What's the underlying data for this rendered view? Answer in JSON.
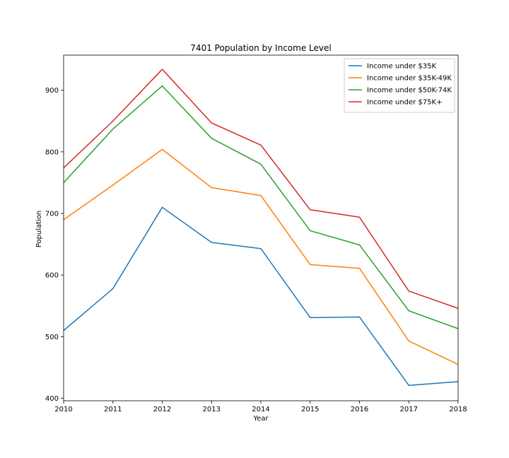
{
  "chart_data": {
    "type": "line",
    "title": "7401 Population by Income Level",
    "xlabel": "Year",
    "ylabel": "Population",
    "x": [
      2010,
      2011,
      2012,
      2013,
      2014,
      2015,
      2016,
      2017,
      2018
    ],
    "xlim": [
      2010,
      2018
    ],
    "ylim": [
      396,
      957
    ],
    "yticks": [
      400,
      500,
      600,
      700,
      800,
      900
    ],
    "grid": false,
    "legend_position": "top-right",
    "series": [
      {
        "name": "Income under $35K",
        "color": "#1f77b4",
        "values": [
          510,
          578,
          710,
          653,
          643,
          531,
          532,
          421,
          427
        ]
      },
      {
        "name": "Income under $35K-49K",
        "color": "#ff7f0e",
        "values": [
          690,
          746,
          804,
          742,
          729,
          617,
          611,
          493,
          455
        ]
      },
      {
        "name": "Income under $50K-74K",
        "color": "#2ca02c",
        "values": [
          750,
          837,
          907,
          822,
          780,
          672,
          649,
          542,
          513
        ]
      },
      {
        "name": "Income under $75K+",
        "color": "#d62728",
        "values": [
          774,
          850,
          934,
          847,
          811,
          706,
          694,
          574,
          546
        ]
      }
    ]
  }
}
